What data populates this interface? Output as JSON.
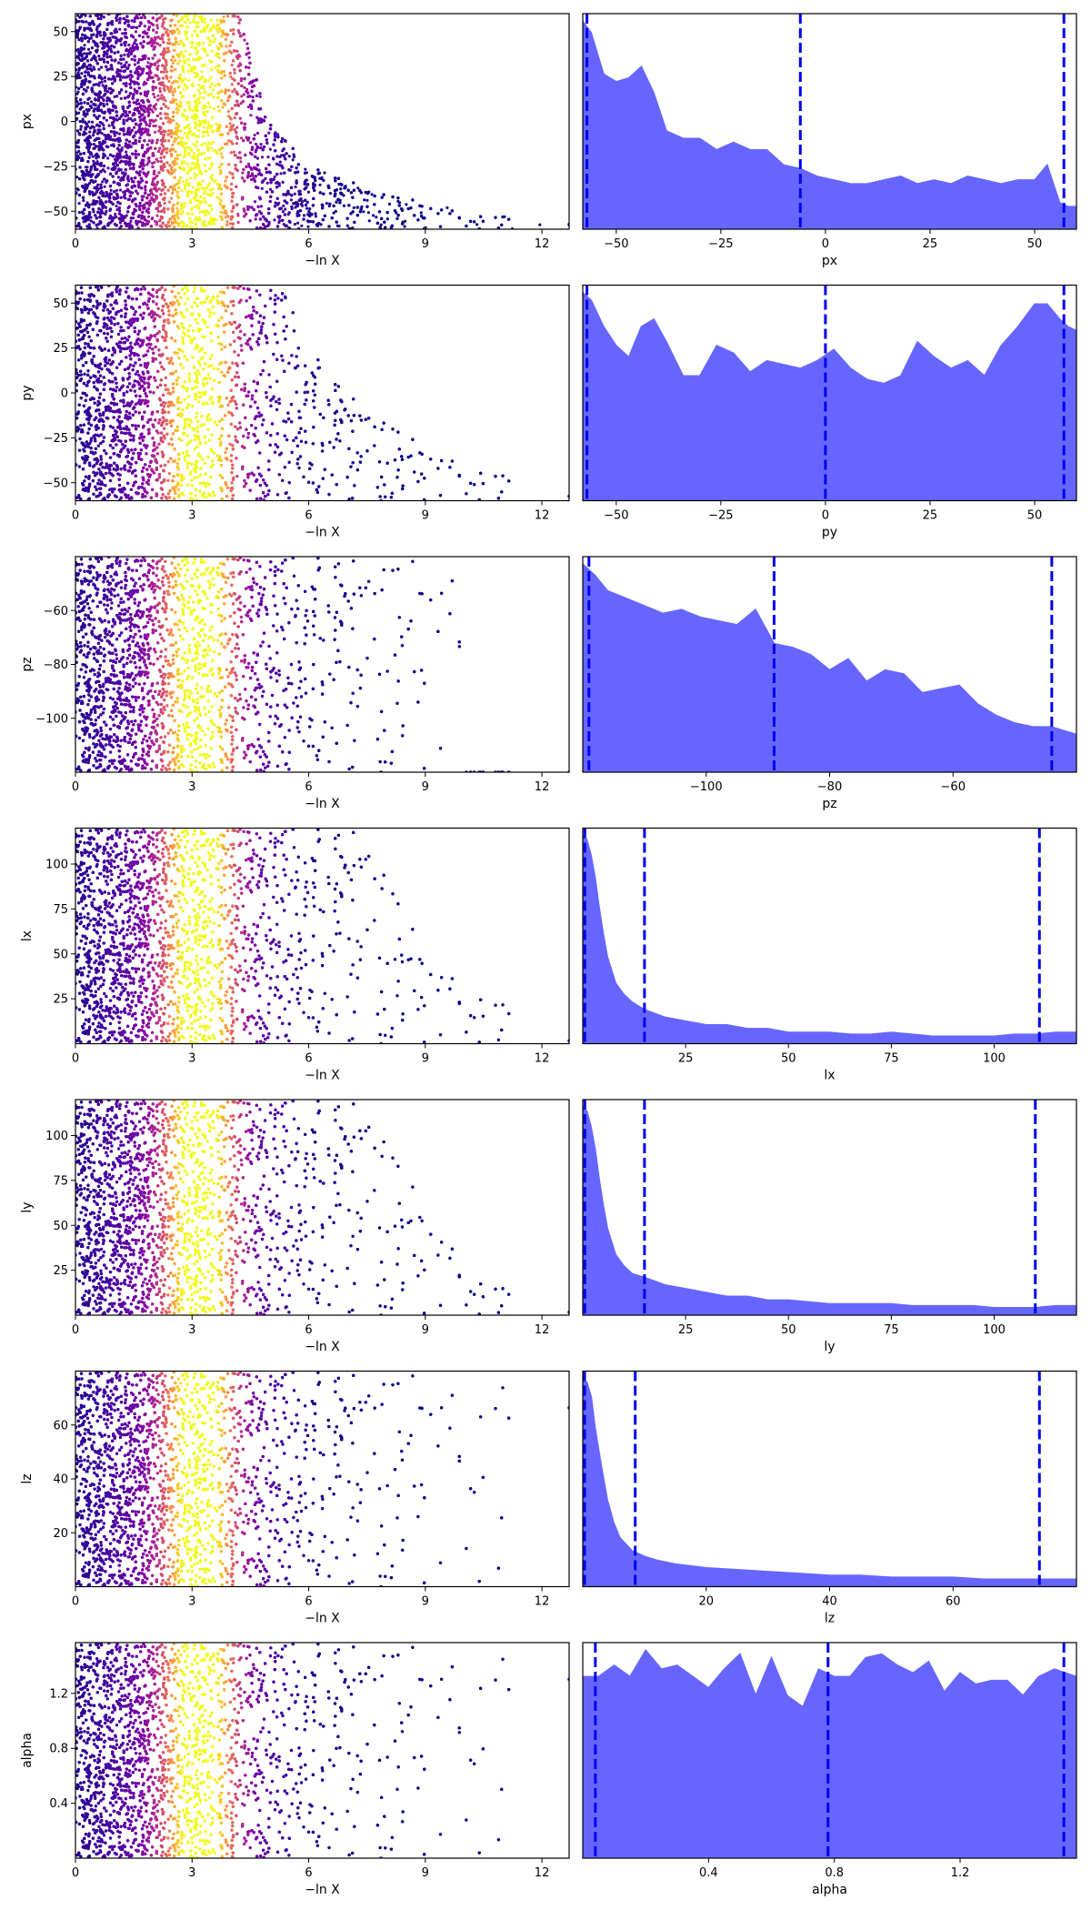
{
  "figure_title": "",
  "scatter_colormap": [
    "#0d0887",
    "#46039f",
    "#7201a8",
    "#9c179e",
    "#bd3786",
    "#d8576b",
    "#ed7953",
    "#fb9f3a",
    "#fdca26",
    "#f0f921"
  ],
  "kde_fill_color": "#6666ff",
  "quantile_line_color": "#0000ee",
  "chart_data": [
    {
      "type": "scatter",
      "parameter": "px",
      "title": "",
      "xlabel": "−ln X",
      "ylabel": "px",
      "xlim": [
        0,
        12.7
      ],
      "ylim": [
        -60,
        60
      ],
      "xticks": [
        0,
        3,
        6,
        9,
        12
      ],
      "xtick_labels": [
        "0",
        "3",
        "6",
        "9",
        "12"
      ],
      "yticks": [
        -50,
        -25,
        0,
        25,
        50
      ],
      "ytick_labels": [
        "−50",
        "−25",
        "0",
        "25",
        "50"
      ],
      "envelope": [
        [
          0,
          60
        ],
        [
          4.2,
          60
        ],
        [
          5,
          0
        ],
        [
          6,
          -25
        ],
        [
          8,
          -40
        ],
        [
          10,
          -50
        ],
        [
          12.7,
          -57
        ]
      ],
      "color_by": "importance weight",
      "n_points": 9000
    },
    {
      "type": "area",
      "parameter": "px",
      "title": "",
      "xlabel": "px",
      "ylabel": "",
      "xlim": [
        -58,
        60
      ],
      "ylim": [
        0,
        57
      ],
      "xticks": [
        -50,
        -25,
        0,
        25,
        50
      ],
      "xtick_labels": [
        "−50",
        "−25",
        "0",
        "25",
        "50"
      ],
      "x": [
        -58,
        -56,
        -53,
        -50,
        -47,
        -44,
        -41,
        -38,
        -34,
        -30,
        -26,
        -22,
        -18,
        -14,
        -10,
        -6,
        -2,
        2,
        6,
        10,
        14,
        18,
        22,
        26,
        30,
        34,
        38,
        42,
        46,
        50,
        53,
        56,
        58,
        60
      ],
      "y": [
        55,
        52,
        41,
        39,
        40,
        43,
        36,
        26,
        24,
        24,
        21,
        23,
        21,
        21,
        17,
        16,
        14,
        13,
        12,
        12,
        13,
        14,
        12,
        13,
        12,
        14,
        13,
        12,
        13,
        13,
        17,
        7,
        6,
        6
      ],
      "quantiles": [
        -57,
        -6,
        57
      ]
    },
    {
      "type": "scatter",
      "parameter": "py",
      "title": "",
      "xlabel": "−ln X",
      "ylabel": "py",
      "xlim": [
        0,
        12.7
      ],
      "ylim": [
        -60,
        60
      ],
      "xticks": [
        0,
        3,
        6,
        9,
        12
      ],
      "xtick_labels": [
        "0",
        "3",
        "6",
        "9",
        "12"
      ],
      "yticks": [
        -50,
        -25,
        0,
        25,
        50
      ],
      "ytick_labels": [
        "−50",
        "−25",
        "0",
        "25",
        "50"
      ],
      "envelope": [
        [
          0,
          60
        ],
        [
          5.3,
          60
        ],
        [
          6,
          25
        ],
        [
          7,
          0
        ],
        [
          9,
          -30
        ],
        [
          11,
          -45
        ],
        [
          12.7,
          -57
        ]
      ],
      "color_by": "importance weight",
      "n_points": 9000
    },
    {
      "type": "area",
      "parameter": "py",
      "title": "",
      "xlabel": "py",
      "ylabel": "",
      "xlim": [
        -58,
        60
      ],
      "ylim": [
        0,
        57
      ],
      "xticks": [
        -50,
        -25,
        0,
        25,
        50
      ],
      "xtick_labels": [
        "−50",
        "−25",
        "0",
        "25",
        "50"
      ],
      "x": [
        -58,
        -56,
        -53,
        -50,
        -47,
        -44,
        -41,
        -38,
        -34,
        -30,
        -26,
        -22,
        -18,
        -14,
        -10,
        -6,
        -2,
        2,
        6,
        10,
        14,
        18,
        22,
        26,
        30,
        34,
        38,
        42,
        46,
        50,
        53,
        56,
        58,
        60
      ],
      "y": [
        55,
        53,
        46,
        41,
        38,
        46,
        48,
        42,
        33,
        33,
        41,
        39,
        34,
        37,
        36,
        35,
        37,
        40,
        35,
        32,
        31,
        33,
        42,
        38,
        35,
        37,
        33,
        41,
        46,
        52,
        52,
        48,
        46,
        45
      ],
      "quantiles": [
        -57,
        0,
        57
      ]
    },
    {
      "type": "scatter",
      "parameter": "pz",
      "title": "",
      "xlabel": "−ln X",
      "ylabel": "pz",
      "xlim": [
        0,
        12.7
      ],
      "ylim": [
        -120,
        -40
      ],
      "xticks": [
        0,
        3,
        6,
        9,
        12
      ],
      "xtick_labels": [
        "0",
        "3",
        "6",
        "9",
        "12"
      ],
      "yticks": [
        -100,
        -80,
        -60
      ],
      "ytick_labels": [
        "−100",
        "−80",
        "−60"
      ],
      "envelope": [
        [
          0,
          -40
        ],
        [
          10,
          -40
        ],
        [
          9,
          -60
        ],
        [
          7.5,
          -80
        ],
        [
          6.5,
          -100
        ],
        [
          6.3,
          -120
        ]
      ],
      "color_by": "importance weight",
      "n_points": 9000
    },
    {
      "type": "area",
      "parameter": "pz",
      "title": "",
      "xlabel": "pz",
      "ylabel": "",
      "xlim": [
        -120,
        -40
      ],
      "ylim": [
        0,
        57
      ],
      "xticks": [
        -100,
        -80,
        -60
      ],
      "xtick_labels": [
        "−100",
        "−80",
        "−60"
      ],
      "x": [
        -120,
        -118,
        -116,
        -113,
        -110,
        -107,
        -104,
        -101,
        -98,
        -95,
        -92,
        -89,
        -86,
        -83,
        -80,
        -77,
        -74,
        -71,
        -68,
        -65,
        -62,
        -59,
        -56,
        -53,
        -50,
        -47,
        -44,
        -42,
        -40
      ],
      "y": [
        55,
        52,
        48,
        46,
        44,
        42,
        43,
        41,
        40,
        39,
        43,
        34,
        33,
        31,
        27,
        30,
        24,
        27,
        26,
        21,
        22,
        23,
        18,
        15,
        13,
        12,
        12,
        11,
        10
      ],
      "quantiles": [
        -119,
        -89,
        -44
      ]
    },
    {
      "type": "scatter",
      "parameter": "lx",
      "title": "",
      "xlabel": "−ln X",
      "ylabel": "lx",
      "xlim": [
        0,
        12.7
      ],
      "ylim": [
        0,
        120
      ],
      "xticks": [
        0,
        3,
        6,
        9,
        12
      ],
      "xtick_labels": [
        "0",
        "3",
        "6",
        "9",
        "12"
      ],
      "yticks": [
        25,
        50,
        75,
        100
      ],
      "ytick_labels": [
        "25",
        "50",
        "75",
        "100"
      ],
      "envelope": [
        [
          0,
          120
        ],
        [
          7.5,
          120
        ],
        [
          9,
          50
        ],
        [
          10.5,
          30
        ],
        [
          12,
          10
        ],
        [
          12.7,
          2
        ]
      ],
      "color_by": "importance weight",
      "n_points": 9000
    },
    {
      "type": "area",
      "parameter": "lx",
      "title": "",
      "xlabel": "lx",
      "ylabel": "",
      "xlim": [
        0,
        120
      ],
      "ylim": [
        0,
        57
      ],
      "xticks": [
        25,
        50,
        75,
        100
      ],
      "xtick_labels": [
        "25",
        "50",
        "75",
        "100"
      ],
      "x": [
        0,
        1,
        2,
        3,
        4,
        5,
        6,
        8,
        10,
        12,
        15,
        20,
        25,
        30,
        35,
        40,
        45,
        50,
        55,
        60,
        65,
        70,
        75,
        80,
        85,
        90,
        95,
        100,
        105,
        110,
        115,
        120
      ],
      "y": [
        55,
        54,
        50,
        44,
        36,
        29,
        23,
        16,
        13,
        11,
        9,
        7,
        6,
        5,
        5,
        4,
        4,
        3,
        3,
        3,
        2.5,
        2.5,
        3,
        2.5,
        2,
        2,
        2,
        2,
        2.5,
        2.5,
        3,
        3
      ],
      "quantiles": [
        0.5,
        15,
        111
      ]
    },
    {
      "type": "scatter",
      "parameter": "ly",
      "title": "",
      "xlabel": "−ln X",
      "ylabel": "ly",
      "xlim": [
        0,
        12.7
      ],
      "ylim": [
        0,
        120
      ],
      "xticks": [
        0,
        3,
        6,
        9,
        12
      ],
      "xtick_labels": [
        "0",
        "3",
        "6",
        "9",
        "12"
      ],
      "yticks": [
        25,
        50,
        75,
        100
      ],
      "ytick_labels": [
        "25",
        "50",
        "75",
        "100"
      ],
      "envelope": [
        [
          0,
          120
        ],
        [
          7.5,
          120
        ],
        [
          9,
          60
        ],
        [
          10.5,
          20
        ],
        [
          12,
          8
        ],
        [
          12.7,
          2
        ]
      ],
      "color_by": "importance weight",
      "n_points": 9000
    },
    {
      "type": "area",
      "parameter": "ly",
      "title": "",
      "xlabel": "ly",
      "ylabel": "",
      "xlim": [
        0,
        120
      ],
      "ylim": [
        0,
        57
      ],
      "xticks": [
        25,
        50,
        75,
        100
      ],
      "xtick_labels": [
        "25",
        "50",
        "75",
        "100"
      ],
      "x": [
        0,
        1,
        2,
        3,
        4,
        5,
        6,
        8,
        10,
        12,
        15,
        20,
        25,
        30,
        35,
        40,
        45,
        50,
        55,
        60,
        65,
        70,
        75,
        80,
        85,
        90,
        95,
        100,
        105,
        110,
        115,
        120
      ],
      "y": [
        55,
        54,
        50,
        44,
        36,
        29,
        23,
        16,
        13,
        11,
        10,
        8,
        7,
        6,
        5,
        5,
        4,
        4,
        3.5,
        3,
        3,
        3,
        3,
        2.5,
        2.5,
        2.5,
        2.5,
        2,
        2,
        2,
        2.5,
        2.5
      ],
      "quantiles": [
        0.5,
        15,
        110
      ]
    },
    {
      "type": "scatter",
      "parameter": "lz",
      "title": "",
      "xlabel": "−ln X",
      "ylabel": "lz",
      "xlim": [
        0,
        12.7
      ],
      "ylim": [
        0,
        80
      ],
      "xticks": [
        0,
        3,
        6,
        9,
        12
      ],
      "xtick_labels": [
        "0",
        "3",
        "6",
        "9",
        "12"
      ],
      "yticks": [
        20,
        40,
        60
      ],
      "ytick_labels": [
        "20",
        "40",
        "60"
      ],
      "envelope": [
        [
          0,
          80
        ],
        [
          12.7,
          80
        ]
      ],
      "color_by": "importance weight",
      "n_points": 9000
    },
    {
      "type": "area",
      "parameter": "lz",
      "title": "",
      "xlabel": "lz",
      "ylabel": "",
      "xlim": [
        0,
        80
      ],
      "ylim": [
        0,
        57
      ],
      "xticks": [
        20,
        40,
        60
      ],
      "xtick_labels": [
        "20",
        "40",
        "60"
      ],
      "x": [
        0,
        0.7,
        1.4,
        2,
        3,
        4,
        5,
        6,
        8,
        10,
        12,
        15,
        20,
        25,
        30,
        35,
        40,
        45,
        50,
        55,
        60,
        65,
        70,
        75,
        80
      ],
      "y": [
        55,
        54,
        50,
        42,
        32,
        23,
        17,
        13,
        9.5,
        8,
        7,
        6,
        5,
        4.5,
        4,
        3.5,
        3,
        3,
        2.5,
        2.5,
        2.5,
        2,
        2,
        2,
        2
      ],
      "quantiles": [
        0.3,
        8.5,
        74
      ]
    },
    {
      "type": "scatter",
      "parameter": "alpha",
      "title": "",
      "xlabel": "−ln X",
      "ylabel": "alpha",
      "xlim": [
        0,
        12.7
      ],
      "ylim": [
        0,
        1.57
      ],
      "xticks": [
        0,
        3,
        6,
        9,
        12
      ],
      "xtick_labels": [
        "0",
        "3",
        "6",
        "9",
        "12"
      ],
      "yticks": [
        0.4,
        0.8,
        1.2
      ],
      "ytick_labels": [
        "0.4",
        "0.8",
        "1.2"
      ],
      "envelope": [
        [
          0,
          1.57
        ],
        [
          12.7,
          1.57
        ]
      ],
      "color_by": "importance weight",
      "n_points": 9000
    },
    {
      "type": "area",
      "parameter": "alpha",
      "title": "",
      "xlabel": "alpha",
      "ylabel": "",
      "xlim": [
        0,
        1.57
      ],
      "ylim": [
        0,
        57
      ],
      "xticks": [
        0.4,
        0.8,
        1.2
      ],
      "xtick_labels": [
        "0.4",
        "0.8",
        "1.2"
      ],
      "x": [
        0,
        0.05,
        0.1,
        0.15,
        0.2,
        0.25,
        0.3,
        0.35,
        0.4,
        0.45,
        0.5,
        0.55,
        0.6,
        0.65,
        0.7,
        0.75,
        0.8,
        0.85,
        0.9,
        0.95,
        1.0,
        1.05,
        1.1,
        1.15,
        1.2,
        1.25,
        1.3,
        1.35,
        1.4,
        1.45,
        1.5,
        1.57
      ],
      "y": [
        48,
        48,
        51,
        48,
        55,
        50,
        51,
        48,
        45,
        50,
        54,
        43,
        53,
        43,
        40,
        50,
        48,
        48,
        53,
        54,
        51,
        49,
        52,
        44,
        49,
        46,
        47,
        47,
        43,
        48,
        50,
        48
      ],
      "quantiles": [
        0.04,
        0.78,
        1.53
      ]
    }
  ]
}
